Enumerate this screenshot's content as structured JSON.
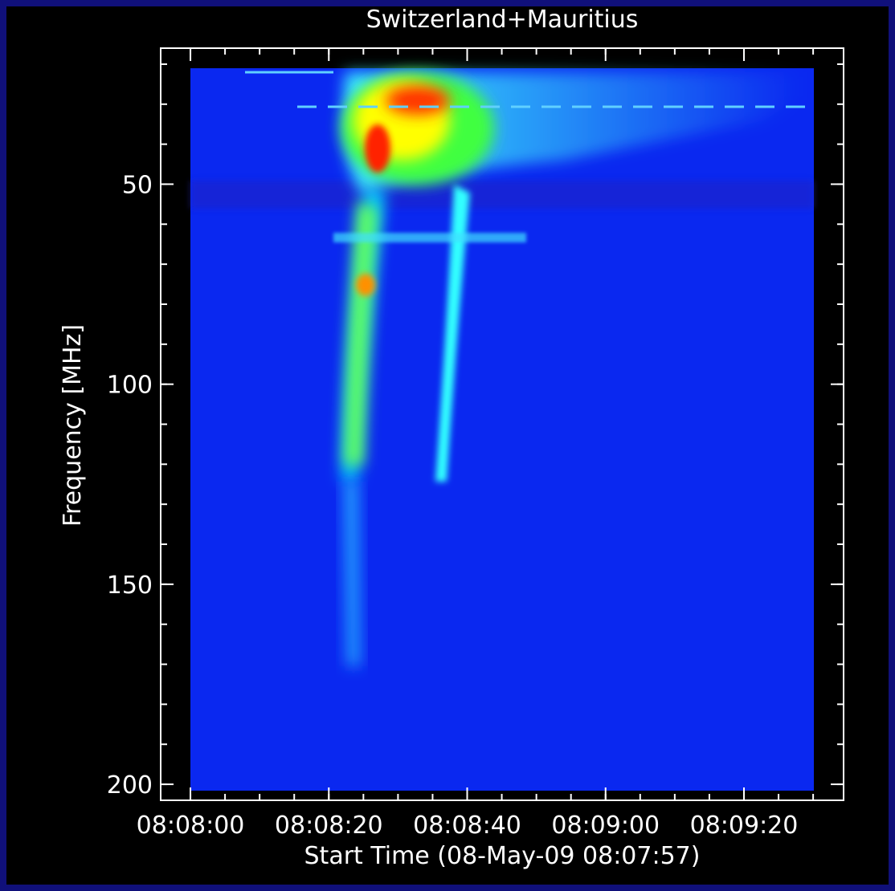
{
  "chart_data": {
    "type": "spectrogram",
    "title": "Switzerland+Mauritius",
    "x_label": "Start Time (08-May-09 08:07:57)",
    "y_label": "Frequency [MHz]",
    "xlim": [
      -1.3,
      97.4
    ],
    "xticks": [
      {
        "value": 3,
        "label": "08:08:00"
      },
      {
        "value": 23,
        "label": "08:08:20"
      },
      {
        "value": 43,
        "label": "08:08:40"
      },
      {
        "value": 63,
        "label": "08:09:00"
      },
      {
        "value": 83,
        "label": "08:09:20"
      }
    ],
    "x_minor_step": 5,
    "ylim": [
      204,
      16
    ],
    "yticks": [
      50,
      100,
      150,
      200
    ],
    "y_minor_step": 10,
    "color": "#ffffff"
  }
}
